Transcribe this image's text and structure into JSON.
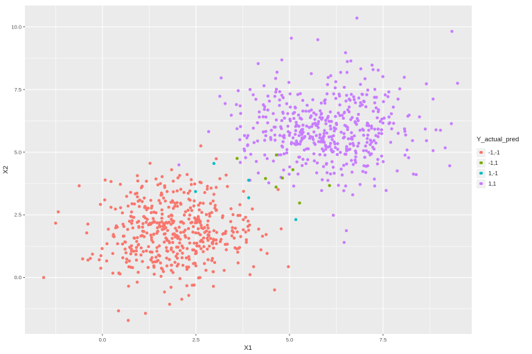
{
  "chart_data": {
    "type": "scatter",
    "title": "",
    "xlabel": "X1",
    "ylabel": "X2",
    "xlim": [
      -2.07,
      9.87
    ],
    "ylim": [
      -2.25,
      10.85
    ],
    "x_ticks": {
      "values": [
        0,
        2.5,
        5,
        7.5
      ],
      "labels": [
        "0.0",
        "2.5",
        "5.0",
        "7.5"
      ]
    },
    "y_ticks": {
      "values": [
        0,
        2.5,
        5,
        7.5,
        10
      ],
      "labels": [
        "0.0",
        "2.5",
        "5.0",
        "7.5",
        "10.0"
      ]
    },
    "minor_ticks_x": [
      -1.25,
      1.25,
      3.75,
      6.25,
      8.75
    ],
    "minor_ticks_y": [
      -1.25,
      1.25,
      3.75,
      6.25,
      8.75
    ],
    "grid": true,
    "panel_background": "#EBEBEB",
    "grid_color": "#FFFFFF",
    "tick_color": "#333333",
    "tick_label_color": "#4D4D4D",
    "axis_title_color": "#1a1a1a",
    "point_radius_px": 2.2,
    "legend": {
      "title": "Y_actual_pred",
      "position": "right",
      "items": [
        {
          "label": "-1,-1",
          "color": "#F8766D"
        },
        {
          "label": "-1,1",
          "color": "#7CAE00"
        },
        {
          "label": "1,-1",
          "color": "#00BFC4"
        },
        {
          "label": "1,1",
          "color": "#C77CFF"
        }
      ]
    },
    "series": [
      {
        "name": "-1,-1",
        "color": "#F8766D",
        "cluster": {
          "n": 485,
          "cx": 1.85,
          "cy": 1.85,
          "sdx": 1.05,
          "sdy": 1.0,
          "seed": 42
        },
        "extra_points": [
          [
            -1.57,
            0.0
          ],
          [
            2.63,
            5.25
          ],
          [
            4.97,
            0.43
          ],
          [
            0.69,
            -1.71
          ],
          [
            0.43,
            -1.33
          ],
          [
            -1.25,
            2.17
          ],
          [
            -1.18,
            2.62
          ],
          [
            4.28,
            1.65
          ],
          [
            -0.62,
            3.66
          ]
        ]
      },
      {
        "name": "1,1",
        "color": "#C77CFF",
        "cluster": {
          "n": 475,
          "cx": 6.0,
          "cy": 5.95,
          "sdx": 1.1,
          "sdy": 1.1,
          "seed": 7
        },
        "extra_points": [
          [
            6.8,
            10.35
          ],
          [
            9.34,
            9.82
          ],
          [
            9.49,
            7.75
          ],
          [
            6.69,
            3.3
          ],
          [
            6.52,
            1.87
          ],
          [
            6.46,
            1.4
          ],
          [
            3.28,
            6.94
          ],
          [
            2.84,
            5.82
          ]
        ]
      },
      {
        "name": "-1,1",
        "color": "#7CAE00",
        "points": [
          [
            3.6,
            4.75
          ],
          [
            4.65,
            4.89
          ],
          [
            4.36,
            3.95
          ],
          [
            4.81,
            3.97
          ],
          [
            4.64,
            3.61
          ],
          [
            5.09,
            4.3
          ],
          [
            6.07,
            3.67
          ],
          [
            5.27,
            2.97
          ]
        ]
      },
      {
        "name": "1,-1",
        "color": "#00BFC4",
        "points": [
          [
            2.98,
            4.55
          ],
          [
            2.49,
            3.43
          ],
          [
            3.91,
            3.88
          ],
          [
            3.91,
            3.18
          ],
          [
            5.17,
            2.31
          ]
        ]
      }
    ]
  }
}
